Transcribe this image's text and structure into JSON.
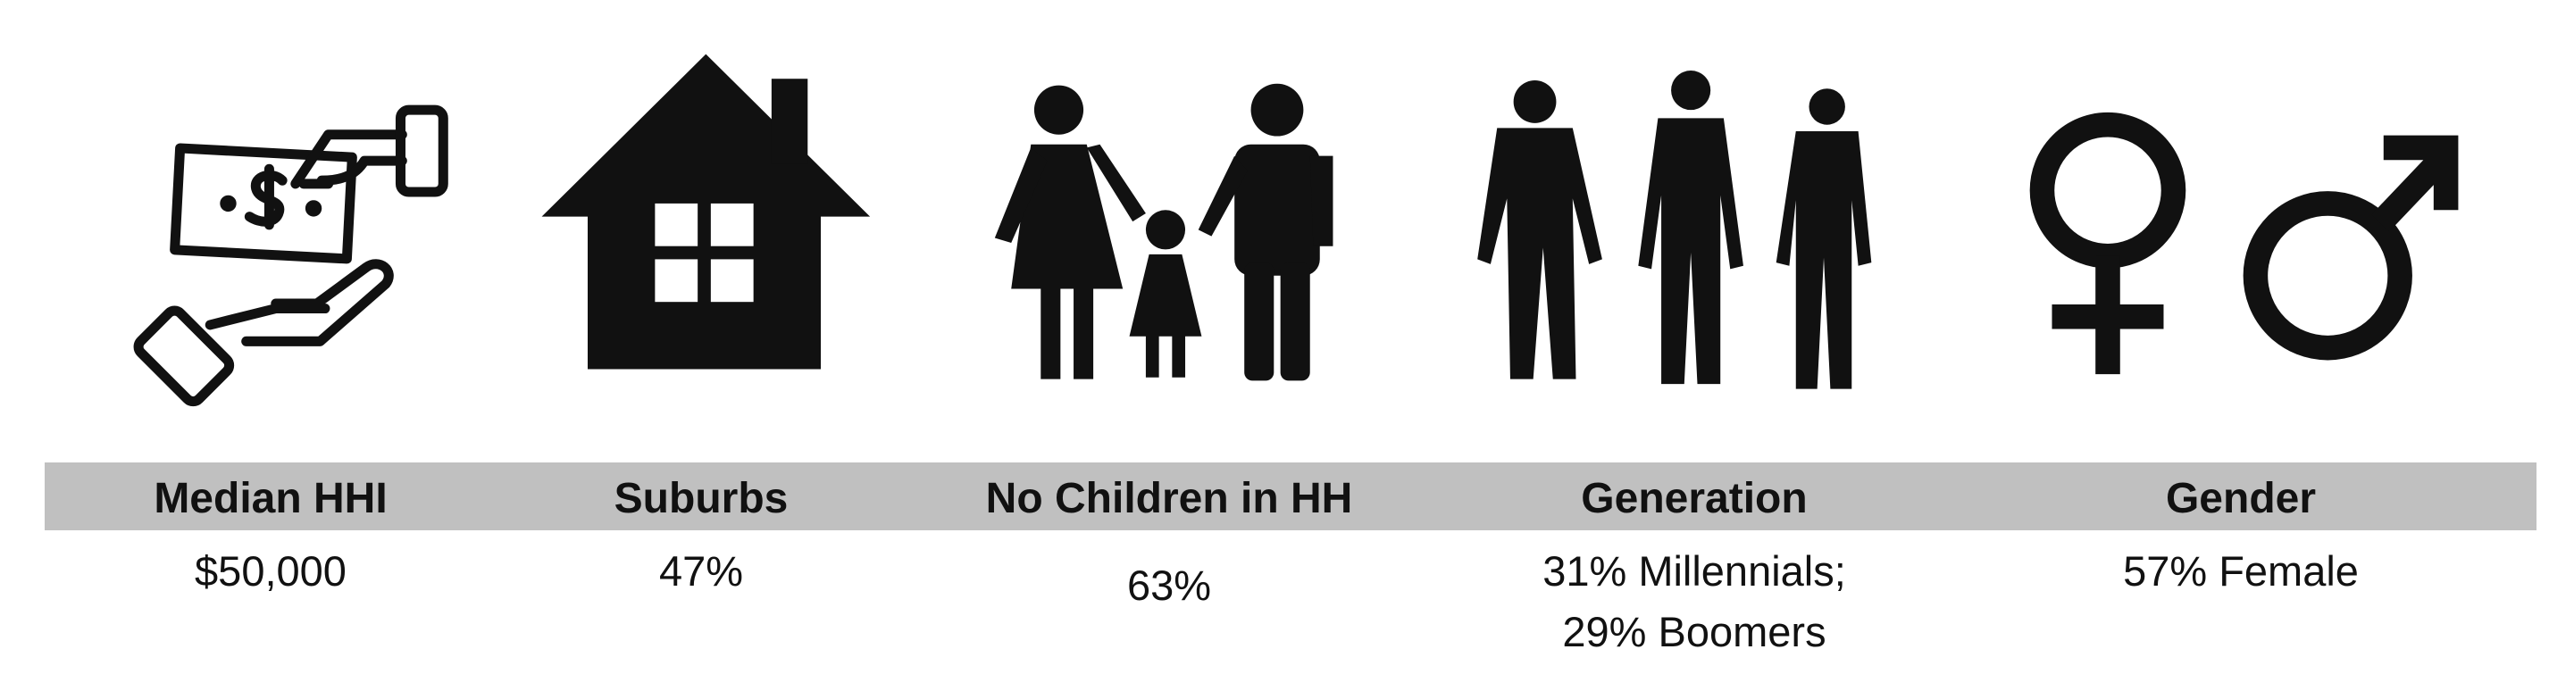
{
  "items": [
    {
      "label": "Median HHI",
      "value": [
        "$50,000"
      ]
    },
    {
      "label": "Suburbs",
      "value": [
        "47%"
      ]
    },
    {
      "label": "No Children in HH",
      "value": [
        "63%"
      ]
    },
    {
      "label": "Generation",
      "value": [
        "31% Millennials;",
        "29% Boomers"
      ]
    },
    {
      "label": "Gender",
      "value": [
        "57% Female"
      ]
    }
  ]
}
